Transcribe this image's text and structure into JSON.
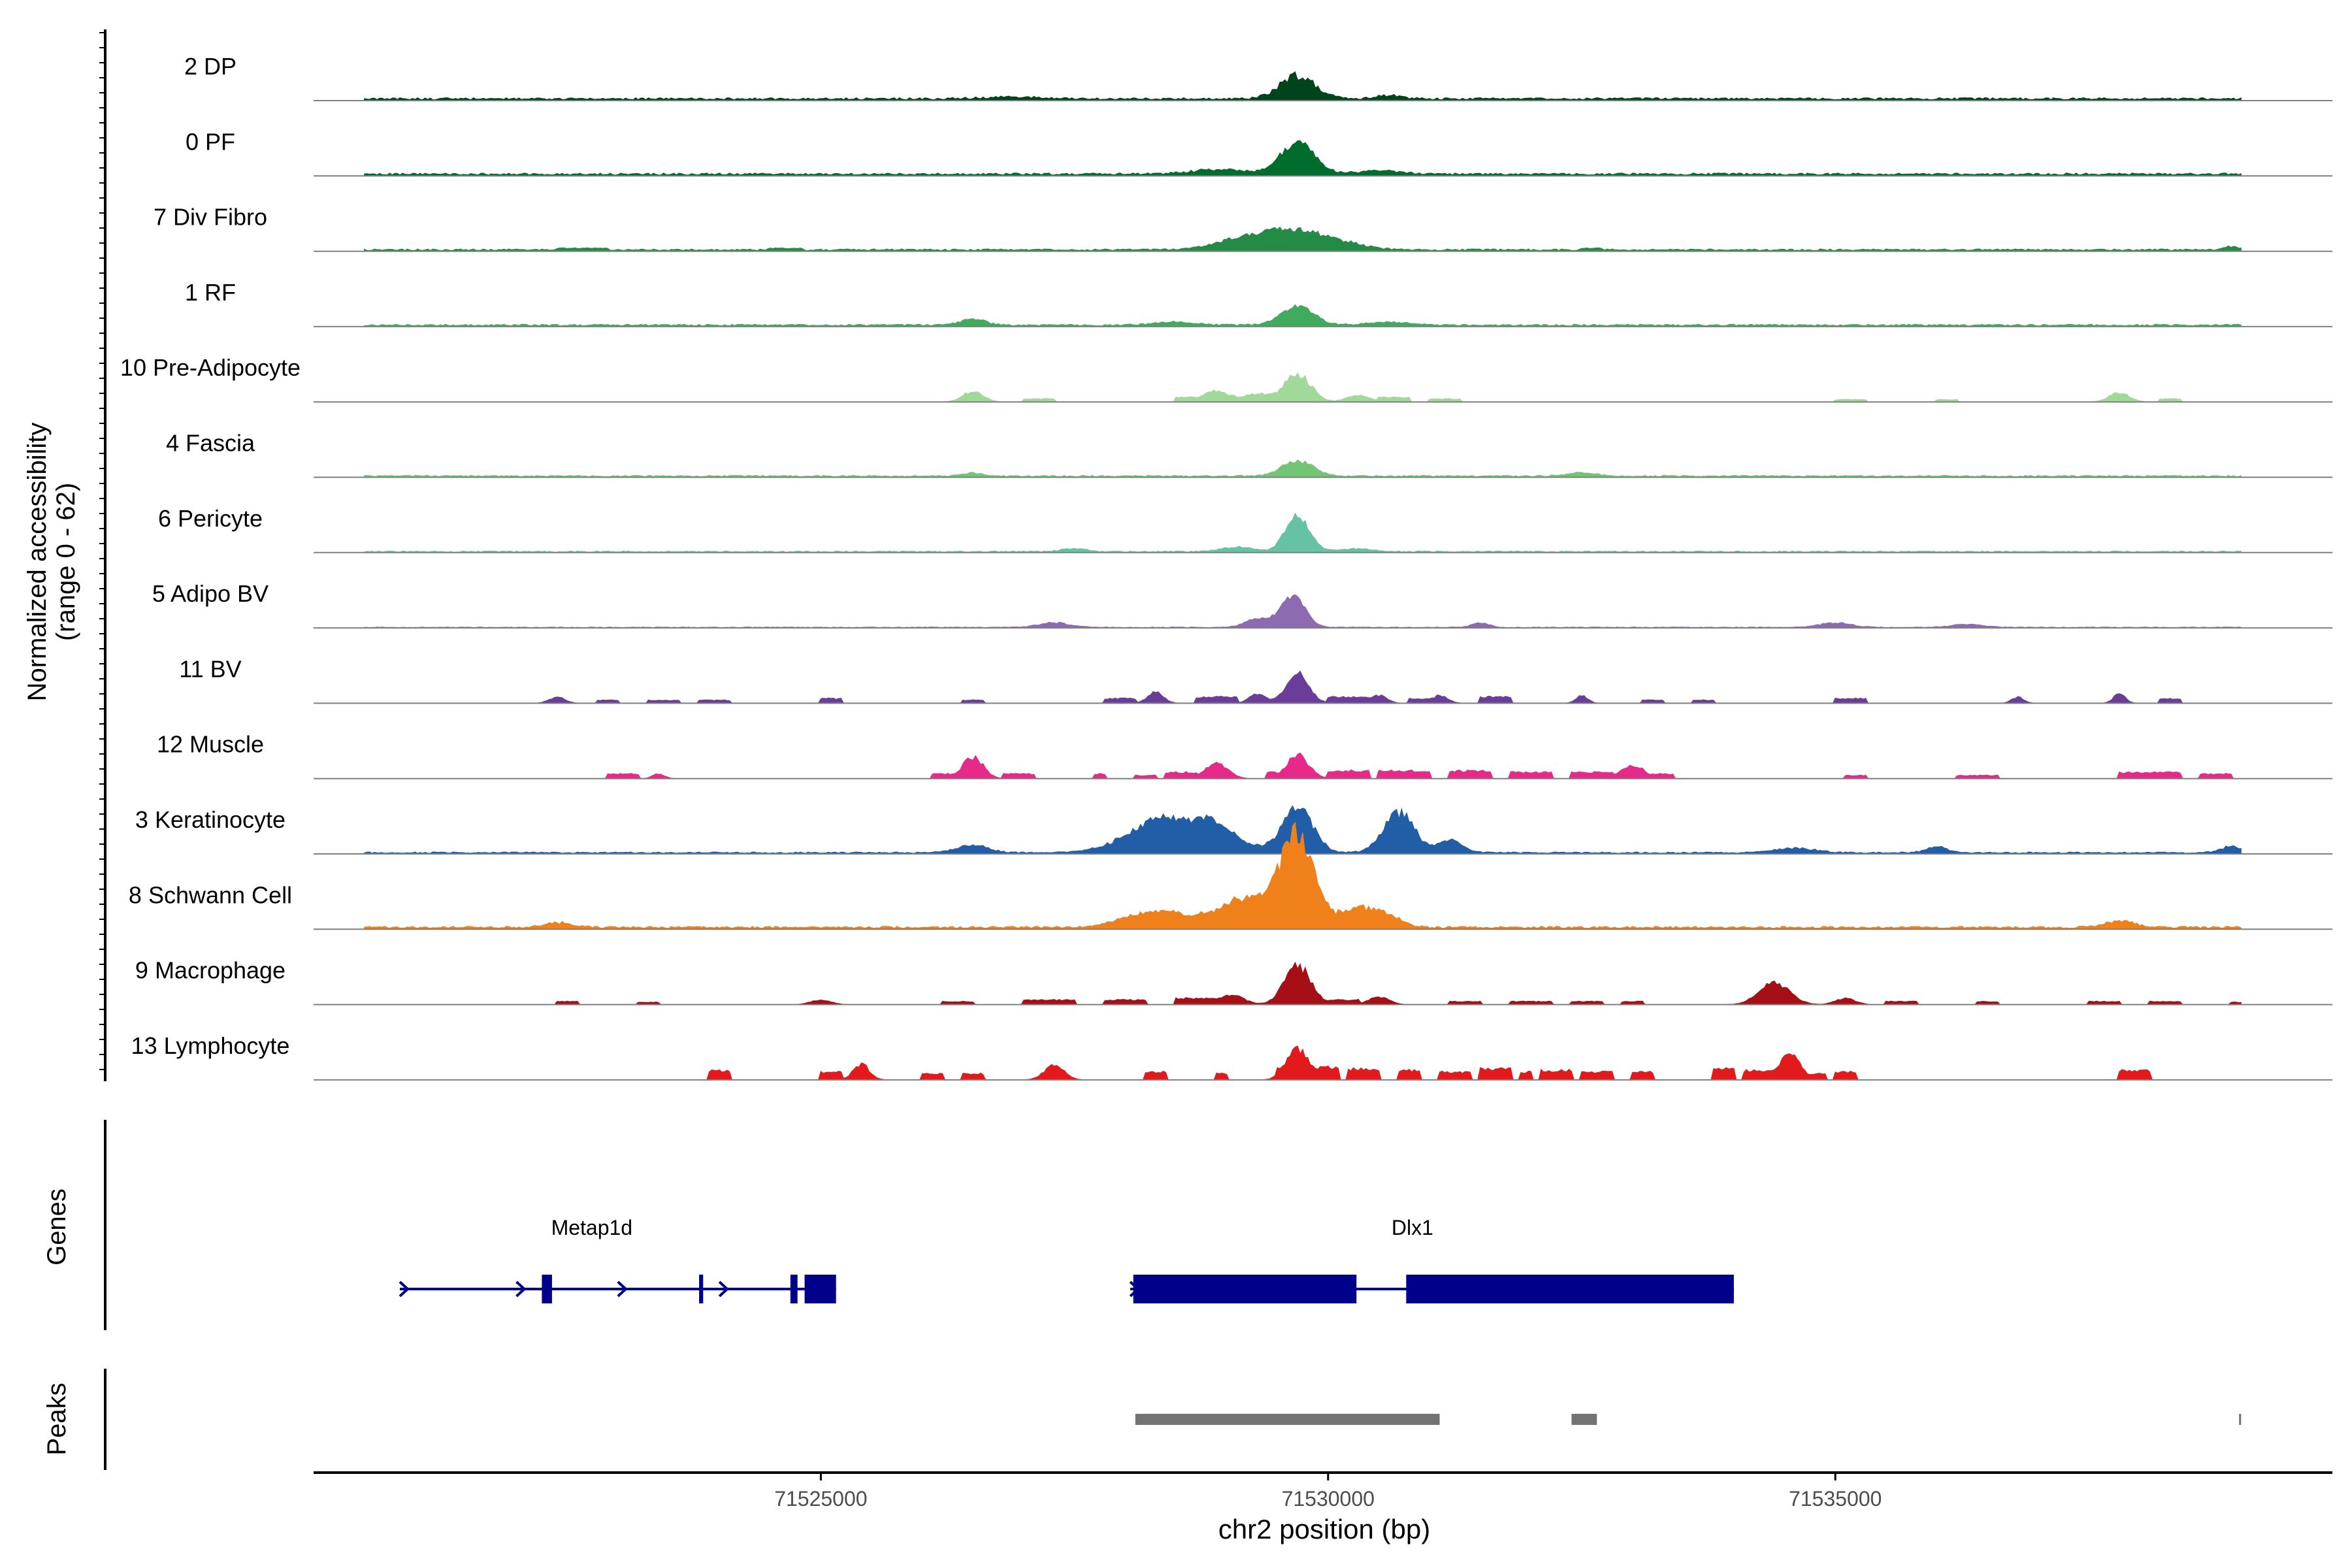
{
  "chart_data": {
    "type": "area",
    "title": "",
    "chromosome": "chr2",
    "xlabel": "chr2 position (bp)",
    "ylabel": "Normalized accessibility",
    "ylabel_range": "(range 0 - 62)",
    "y_range": [
      0,
      62
    ],
    "xlim": [
      71520000,
      71539900
    ],
    "x_ticks": [
      71525000,
      71530000,
      71535000
    ],
    "x_tick_labels": [
      "71525000",
      "71530000",
      "71535000"
    ],
    "genes_label": "Genes",
    "peaks_label": "Peaks",
    "tracks": [
      {
        "name": "2 DP",
        "color": "#00441b",
        "baseline": 1.5,
        "scale": 0.55,
        "peaks": [
          [
            71529700,
            170,
            15
          ],
          [
            71530600,
            120,
            2
          ],
          [
            71526900,
            300,
            1
          ]
        ],
        "blocks": []
      },
      {
        "name": "0 PF",
        "color": "#006d2c",
        "baseline": 1.5,
        "scale": 0.55,
        "peaks": [
          [
            71529700,
            170,
            20
          ],
          [
            71528900,
            250,
            3
          ],
          [
            71530500,
            200,
            2
          ]
        ],
        "blocks": []
      },
      {
        "name": "7 Div Fibro",
        "color": "#238b45",
        "baseline": 1.2,
        "scale": 0.55,
        "peaks": [
          [
            71529600,
            300,
            12
          ],
          [
            71529100,
            250,
            5
          ],
          [
            71530100,
            250,
            4
          ],
          [
            71538900,
            80,
            2
          ]
        ],
        "blocks": [
          [
            71522400,
            71522900,
            2
          ],
          [
            71524500,
            71524800,
            2
          ],
          [
            71532500,
            71532700,
            2
          ]
        ]
      },
      {
        "name": "1 RF",
        "color": "#41ab5d",
        "baseline": 1.2,
        "scale": 0.55,
        "peaks": [
          [
            71529700,
            160,
            12
          ],
          [
            71526500,
            120,
            4
          ],
          [
            71528500,
            200,
            2
          ],
          [
            71530600,
            200,
            2
          ]
        ],
        "blocks": []
      },
      {
        "name": "10 Pre-Adipocyte",
        "color": "#a1d99b",
        "baseline": 0.0,
        "scale": 0.55,
        "peaks": [
          [
            71529700,
            130,
            18
          ],
          [
            71528900,
            130,
            7
          ],
          [
            71526500,
            100,
            7
          ],
          [
            71529300,
            120,
            5
          ],
          [
            71530300,
            120,
            4
          ],
          [
            71537800,
            100,
            6
          ]
        ],
        "blocks": [
          [
            71527000,
            71527300,
            2
          ],
          [
            71528500,
            71528700,
            3
          ],
          [
            71529400,
            71529550,
            4
          ],
          [
            71530500,
            71530800,
            3
          ],
          [
            71531000,
            71531300,
            2
          ],
          [
            71535000,
            71535300,
            1.5
          ],
          [
            71536000,
            71536200,
            1.5
          ],
          [
            71538200,
            71538400,
            2
          ]
        ]
      },
      {
        "name": "4 Fascia",
        "color": "#74c476",
        "baseline": 1.0,
        "scale": 0.55,
        "peaks": [
          [
            71529700,
            150,
            10
          ],
          [
            71526500,
            100,
            2
          ],
          [
            71532500,
            150,
            2
          ]
        ],
        "blocks": []
      },
      {
        "name": "6 Pericyte",
        "color": "#66c2a5",
        "baseline": 0.8,
        "scale": 0.55,
        "peaks": [
          [
            71529700,
            120,
            22
          ],
          [
            71527500,
            120,
            2
          ],
          [
            71529100,
            150,
            3
          ],
          [
            71530300,
            150,
            2
          ]
        ],
        "blocks": []
      },
      {
        "name": "5 Adipo BV",
        "color": "#8c6bb1",
        "baseline": 0.5,
        "scale": 0.55,
        "peaks": [
          [
            71529650,
            120,
            20
          ],
          [
            71527300,
            150,
            3
          ],
          [
            71529300,
            120,
            5
          ],
          [
            71531500,
            80,
            3
          ],
          [
            71535000,
            150,
            3
          ],
          [
            71536300,
            150,
            2
          ]
        ],
        "blocks": []
      },
      {
        "name": "11 BV",
        "color": "#6a3d9a",
        "baseline": 0.0,
        "scale": 0.55,
        "peaks": [
          [
            71529700,
            110,
            20
          ],
          [
            71529300,
            80,
            6
          ],
          [
            71528300,
            80,
            7
          ],
          [
            71530500,
            80,
            5
          ],
          [
            71531100,
            80,
            5
          ],
          [
            71532500,
            60,
            5
          ],
          [
            71537800,
            60,
            6
          ],
          [
            71536800,
            60,
            4
          ],
          [
            71522400,
            80,
            4
          ]
        ],
        "blocks": [
          [
            71522800,
            71523000,
            2
          ],
          [
            71523300,
            71523600,
            2
          ],
          [
            71523800,
            71524100,
            2
          ],
          [
            71525000,
            71525200,
            3
          ],
          [
            71526400,
            71526600,
            2
          ],
          [
            71527800,
            71528100,
            3
          ],
          [
            71528700,
            71529100,
            4
          ],
          [
            71530000,
            71530400,
            4
          ],
          [
            71530800,
            71531000,
            3
          ],
          [
            71531500,
            71531800,
            4
          ],
          [
            71533100,
            71533300,
            2
          ],
          [
            71533600,
            71533800,
            2
          ],
          [
            71535000,
            71535300,
            3
          ],
          [
            71538200,
            71538400,
            3
          ]
        ]
      },
      {
        "name": "12 Muscle",
        "color": "#e7298a",
        "baseline": 0.0,
        "scale": 0.55,
        "peaks": [
          [
            71529700,
            110,
            15
          ],
          [
            71526500,
            100,
            14
          ],
          [
            71528900,
            110,
            10
          ],
          [
            71533000,
            110,
            9
          ],
          [
            71523400,
            60,
            3
          ]
        ],
        "blocks": [
          [
            71522900,
            71523200,
            3
          ],
          [
            71526100,
            71526400,
            3
          ],
          [
            71526800,
            71527100,
            3
          ],
          [
            71527700,
            71527800,
            3
          ],
          [
            71528100,
            71528300,
            2
          ],
          [
            71528400,
            71528700,
            4
          ],
          [
            71529400,
            71529600,
            4
          ],
          [
            71530000,
            71530400,
            5
          ],
          [
            71530500,
            71531000,
            5
          ],
          [
            71531200,
            71531600,
            5
          ],
          [
            71531800,
            71532200,
            4
          ],
          [
            71532400,
            71532800,
            4
          ],
          [
            71533200,
            71533400,
            3
          ],
          [
            71535100,
            71535300,
            2
          ],
          [
            71536200,
            71536600,
            2
          ],
          [
            71537800,
            71538400,
            4
          ],
          [
            71538600,
            71538900,
            3
          ]
        ]
      },
      {
        "name": "3 Keratinocyte",
        "color": "#225ea8",
        "baseline": 1.0,
        "scale": 0.55,
        "peaks": [
          [
            71528400,
            350,
            22
          ],
          [
            71529700,
            150,
            28
          ],
          [
            71530700,
            150,
            26
          ],
          [
            71531200,
            120,
            8
          ],
          [
            71526500,
            150,
            5
          ],
          [
            71528900,
            150,
            7
          ],
          [
            71529000,
            250,
            6
          ],
          [
            71534600,
            200,
            3
          ],
          [
            71536000,
            100,
            4
          ],
          [
            71538900,
            100,
            4
          ]
        ],
        "blocks": []
      },
      {
        "name": "8 Schwann Cell",
        "color": "#f0801a",
        "baseline": 1.5,
        "scale": 0.55,
        "peaks": [
          [
            71529700,
            160,
            55
          ],
          [
            71529200,
            300,
            18
          ],
          [
            71528300,
            300,
            10
          ],
          [
            71530300,
            200,
            12
          ],
          [
            71530600,
            150,
            5
          ],
          [
            71537800,
            150,
            4
          ],
          [
            71522400,
            150,
            3
          ]
        ],
        "blocks": []
      },
      {
        "name": "9 Macrophage",
        "color": "#a50f15",
        "baseline": 0.0,
        "scale": 0.55,
        "peaks": [
          [
            71529700,
            130,
            25
          ],
          [
            71534400,
            150,
            14
          ],
          [
            71529050,
            120,
            6
          ],
          [
            71530500,
            100,
            5
          ],
          [
            71535100,
            100,
            4
          ],
          [
            71525000,
            100,
            3
          ]
        ],
        "blocks": [
          [
            71522400,
            71522600,
            2
          ],
          [
            71523200,
            71523400,
            1.5
          ],
          [
            71526200,
            71526500,
            2
          ],
          [
            71527000,
            71527500,
            3
          ],
          [
            71527800,
            71528200,
            3
          ],
          [
            71528500,
            71529000,
            4
          ],
          [
            71530000,
            71530300,
            3
          ],
          [
            71531200,
            71531500,
            2
          ],
          [
            71531800,
            71532200,
            2
          ],
          [
            71532400,
            71532700,
            2
          ],
          [
            71532900,
            71533100,
            2
          ],
          [
            71535500,
            71535800,
            2
          ],
          [
            71536400,
            71536600,
            2
          ],
          [
            71537500,
            71537800,
            2
          ],
          [
            71538100,
            71538400,
            2
          ],
          [
            71538900,
            71539000,
            1.5
          ]
        ]
      },
      {
        "name": "13 Lymphocyte",
        "color": "#e31a1c",
        "baseline": 0.0,
        "scale": 0.55,
        "peaks": [
          [
            71529700,
            110,
            20
          ],
          [
            71534550,
            100,
            18
          ],
          [
            71525400,
            80,
            10
          ],
          [
            71527300,
            100,
            9
          ]
        ],
        "blocks": [
          [
            71523900,
            71524100,
            6
          ],
          [
            71525000,
            71525200,
            5
          ],
          [
            71526000,
            71526200,
            4
          ],
          [
            71526400,
            71526600,
            4
          ],
          [
            71528200,
            71528400,
            5
          ],
          [
            71528900,
            71529000,
            4
          ],
          [
            71529500,
            71530100,
            8
          ],
          [
            71530200,
            71530500,
            7
          ],
          [
            71530700,
            71530900,
            6
          ],
          [
            71531100,
            71531400,
            5
          ],
          [
            71531500,
            71531800,
            7
          ],
          [
            71531900,
            71532000,
            5
          ],
          [
            71532100,
            71532400,
            6
          ],
          [
            71532500,
            71532800,
            5
          ],
          [
            71533000,
            71533200,
            5
          ],
          [
            71533800,
            71534000,
            7
          ],
          [
            71534100,
            71534400,
            6
          ],
          [
            71534700,
            71534900,
            4
          ],
          [
            71535000,
            71535200,
            5
          ],
          [
            71537800,
            71538100,
            6
          ]
        ]
      }
    ],
    "genes": [
      {
        "name": "Metap1d",
        "start": 71520850,
        "end": 71525150,
        "strand": "+",
        "color": "#00008b",
        "exons": [
          [
            71522250,
            71522350
          ],
          [
            71523800,
            71523840
          ],
          [
            71524700,
            71524770
          ],
          [
            71524840,
            71525150
          ]
        ],
        "arrows": [
          71520850,
          71522000,
          71523000,
          71524000
        ]
      },
      {
        "name": "Dlx1",
        "start": 71528050,
        "end": 71534000,
        "strand": "+",
        "color": "#00008b",
        "exons": [
          [
            71528080,
            71530280
          ],
          [
            71530770,
            71534000
          ]
        ],
        "arrows": [
          71528050
        ]
      }
    ],
    "peaks": [
      {
        "start": 71528100,
        "end": 71531100,
        "color": "#737373"
      },
      {
        "start": 71532400,
        "end": 71532650,
        "color": "#737373"
      },
      {
        "start": 71538980,
        "end": 71539000,
        "color": "#737373"
      }
    ]
  }
}
